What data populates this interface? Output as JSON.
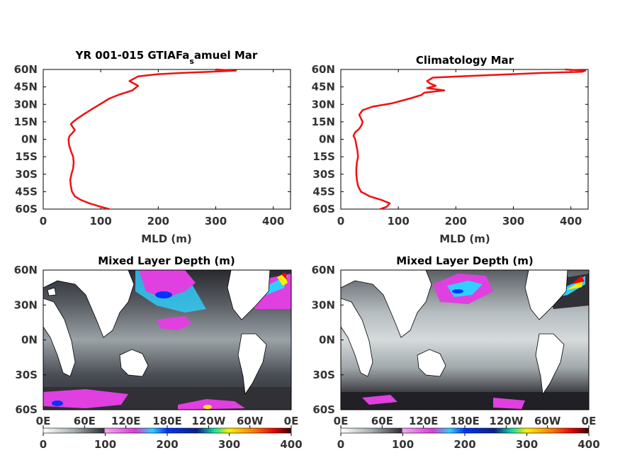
{
  "chart_data": [
    {
      "type": "line",
      "title_main": "YR 001-015 GTIAFa",
      "title_sub": "s",
      "title_rest": "amuel Mar",
      "xlabel": "MLD (m)",
      "xlim": [
        0,
        430
      ],
      "ylim": [
        -60,
        60
      ],
      "xticks": [
        "0",
        "100",
        "200",
        "300",
        "400"
      ],
      "yticks": [
        "60N",
        "45N",
        "30N",
        "15N",
        "0N",
        "15S",
        "30S",
        "45S",
        "60S"
      ],
      "series": [
        {
          "color": "#ee1111",
          "x": [
            115,
            100,
            80,
            65,
            55,
            50,
            48,
            47,
            49,
            52,
            53,
            52,
            48,
            45,
            44,
            46,
            50,
            55,
            52,
            48,
            52,
            60,
            72,
            85,
            95,
            105,
            115,
            130,
            155,
            165,
            150,
            165,
            200,
            240,
            290,
            335,
            300
          ],
          "y": [
            -60,
            -58,
            -55,
            -52,
            -49,
            -45,
            -40,
            -35,
            -30,
            -25,
            -20,
            -15,
            -10,
            -5,
            0,
            3,
            5,
            8,
            10,
            13,
            15,
            18,
            22,
            26,
            29,
            32,
            35,
            38,
            42,
            46,
            50,
            54,
            56,
            57,
            58,
            59,
            60
          ]
        }
      ]
    },
    {
      "type": "line",
      "title_main": "Climatology Mar",
      "title_sub": "",
      "title_rest": "",
      "xlabel": "MLD (m)",
      "xlim": [
        0,
        430
      ],
      "ylim": [
        -60,
        60
      ],
      "xticks": [
        "0",
        "100",
        "200",
        "300",
        "400"
      ],
      "yticks": [
        "60N",
        "45N",
        "30N",
        "15N",
        "0N",
        "15S",
        "30S",
        "45S",
        "60S"
      ],
      "series": [
        {
          "color": "#ee1111",
          "x": [
            68,
            80,
            85,
            70,
            50,
            35,
            30,
            28,
            27,
            27,
            28,
            30,
            29,
            27,
            25,
            22,
            25,
            32,
            36,
            38,
            35,
            32,
            38,
            55,
            90,
            120,
            140,
            145,
            180,
            150,
            165,
            155,
            150,
            160,
            250,
            350,
            420,
            425,
            390
          ],
          "y": [
            -60,
            -58,
            -55,
            -52,
            -49,
            -45,
            -40,
            -35,
            -30,
            -25,
            -20,
            -15,
            -10,
            -5,
            0,
            3,
            6,
            9,
            12,
            15,
            18,
            21,
            25,
            28,
            31,
            35,
            38,
            40,
            42,
            44,
            46,
            48,
            50,
            53,
            55,
            57,
            58,
            59,
            60
          ]
        }
      ]
    },
    {
      "type": "heatmap",
      "title": "Mixed Layer Depth (m)",
      "yticks": [
        "60N",
        "30N",
        "0N",
        "30S",
        "60S"
      ],
      "xticks": [
        "0E",
        "60E",
        "120E",
        "180E",
        "120W",
        "60W",
        "0E"
      ],
      "colorbar_ticks": [
        "0",
        "100",
        "200",
        "300",
        "400"
      ],
      "colorbar_range": [
        0,
        400
      ]
    },
    {
      "type": "heatmap",
      "title": "Mixed Layer Depth (m)",
      "yticks": [
        "60N",
        "30N",
        "0N",
        "30S",
        "60S"
      ],
      "xticks": [
        "0E",
        "60E",
        "120E",
        "180E",
        "120W",
        "60W",
        "0E"
      ],
      "colorbar_ticks": [
        "0",
        "100",
        "200",
        "300",
        "400"
      ],
      "colorbar_range": [
        0,
        400
      ]
    }
  ],
  "colormap": [
    "#ffffff",
    "#9ba3a6",
    "#303038",
    "#f0a0f0",
    "#e040e0",
    "#00ccff",
    "#0020ff",
    "#00e090",
    "#ffee00",
    "#ff8800",
    "#ff0000",
    "#400000"
  ]
}
